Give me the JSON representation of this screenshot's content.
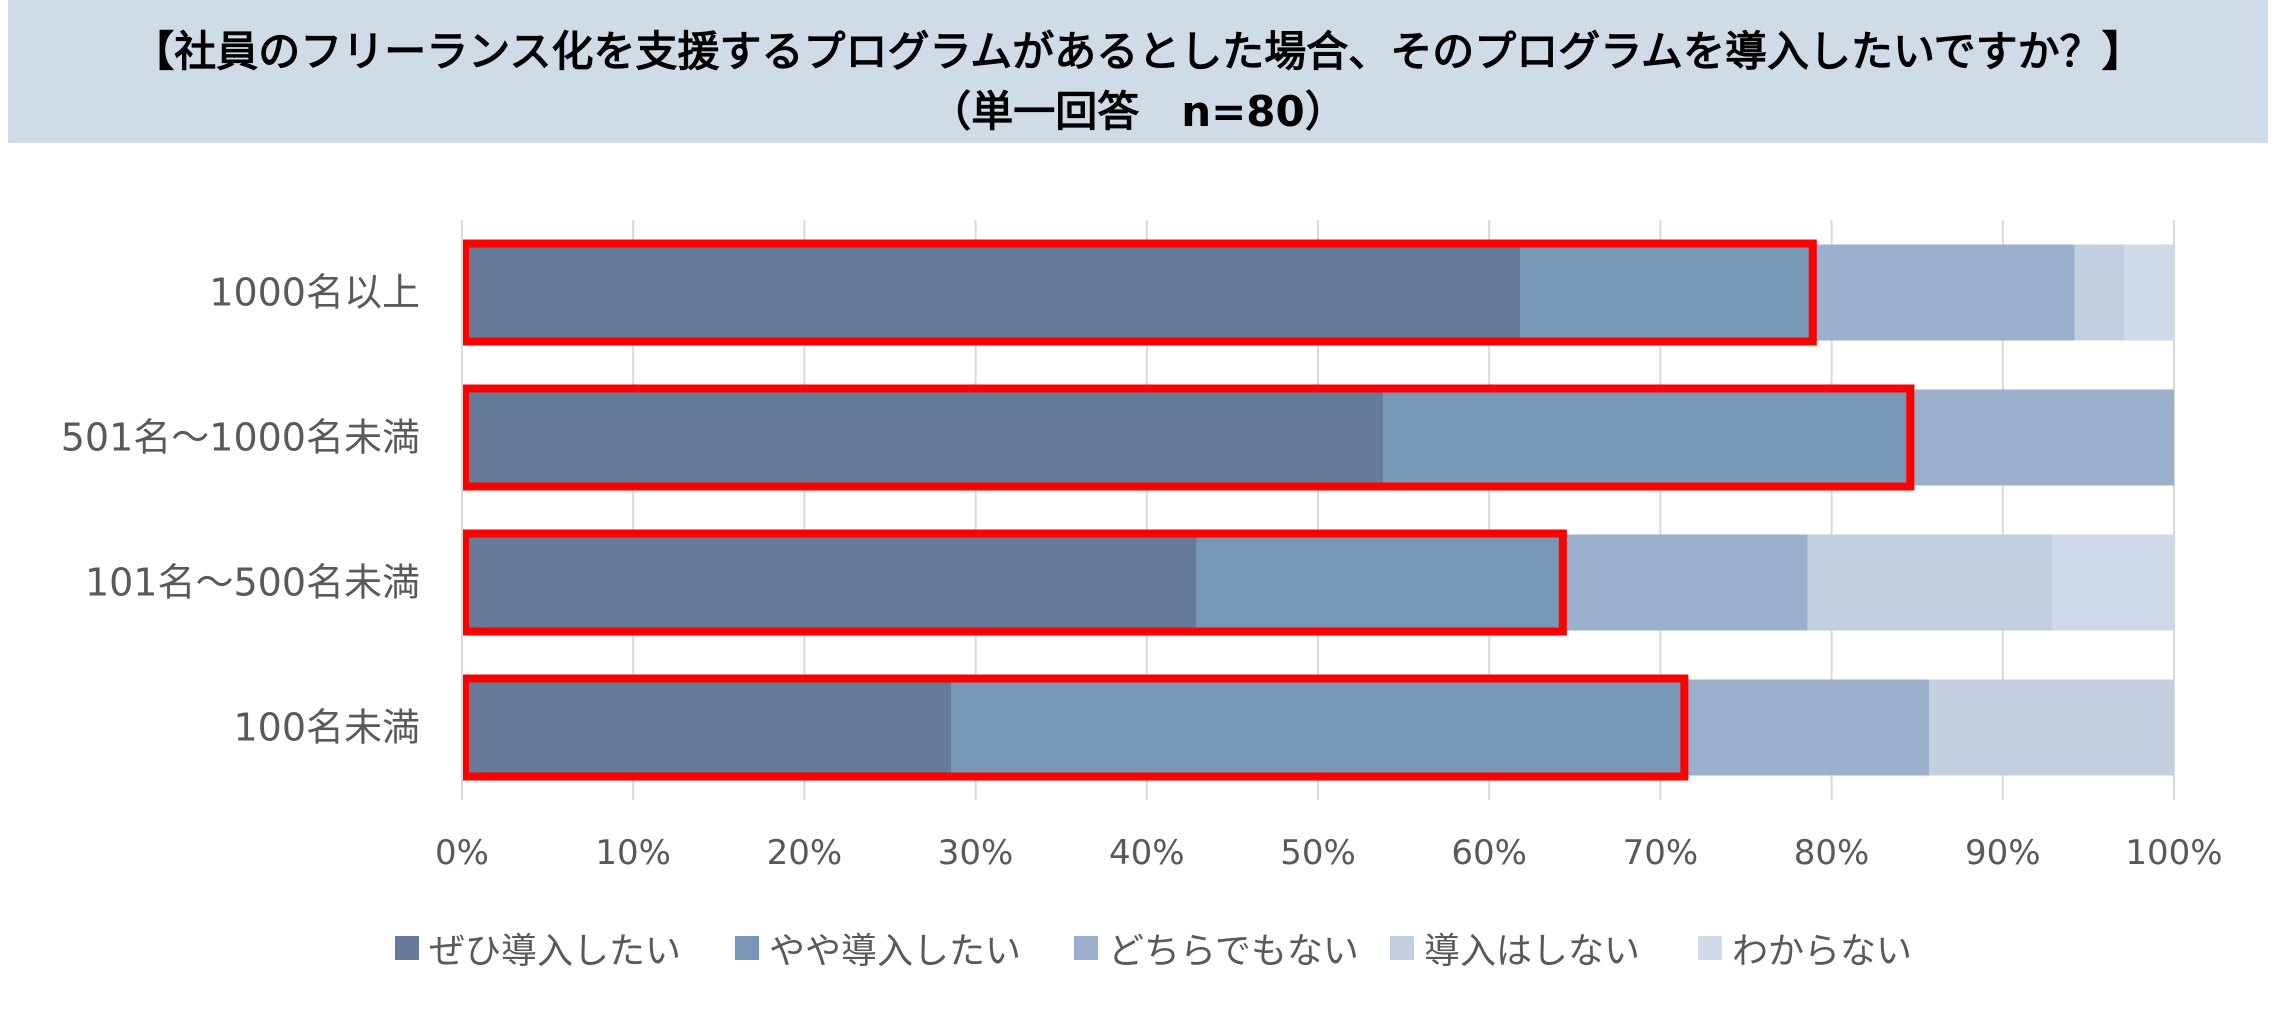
{
  "title": {
    "line1": "【社員のフリーランス化を支援するプログラムがあるとした場合、そのプログラムを導入したいですか？】",
    "line2": "（単一回答　n=80）"
  },
  "chart_data": {
    "type": "bar",
    "orientation": "horizontal",
    "stacked": true,
    "categories": [
      "1000名以上",
      "501名～1000名未満",
      "101名～500名未満",
      "100名未満"
    ],
    "series": [
      {
        "name": "ぜひ導入したい",
        "color": "#657b99",
        "values": [
          61.8,
          53.8,
          42.9,
          28.6
        ]
      },
      {
        "name": "やや導入したい",
        "color": "#7896b6",
        "values": [
          17.1,
          30.8,
          21.4,
          42.8
        ]
      },
      {
        "name": "どちらでもない",
        "color": "#9bb0cd",
        "values": [
          15.3,
          15.4,
          14.3,
          14.3
        ]
      },
      {
        "name": "導入はしない",
        "color": "#c2cfdf",
        "values": [
          2.9,
          0,
          14.3,
          14.3
        ]
      },
      {
        "name": "わからない",
        "color": "#cfdae9",
        "values": [
          2.9,
          0,
          7.1,
          0
        ]
      }
    ],
    "highlight": {
      "color": "#ff0000",
      "values": [
        78.9,
        84.6,
        64.3,
        71.4
      ]
    },
    "xlim": [
      0,
      100
    ],
    "xticks": [
      "0%",
      "10%",
      "20%",
      "30%",
      "40%",
      "50%",
      "60%",
      "70%",
      "80%",
      "90%",
      "100%"
    ],
    "grid": true,
    "legend_position": "bottom"
  }
}
